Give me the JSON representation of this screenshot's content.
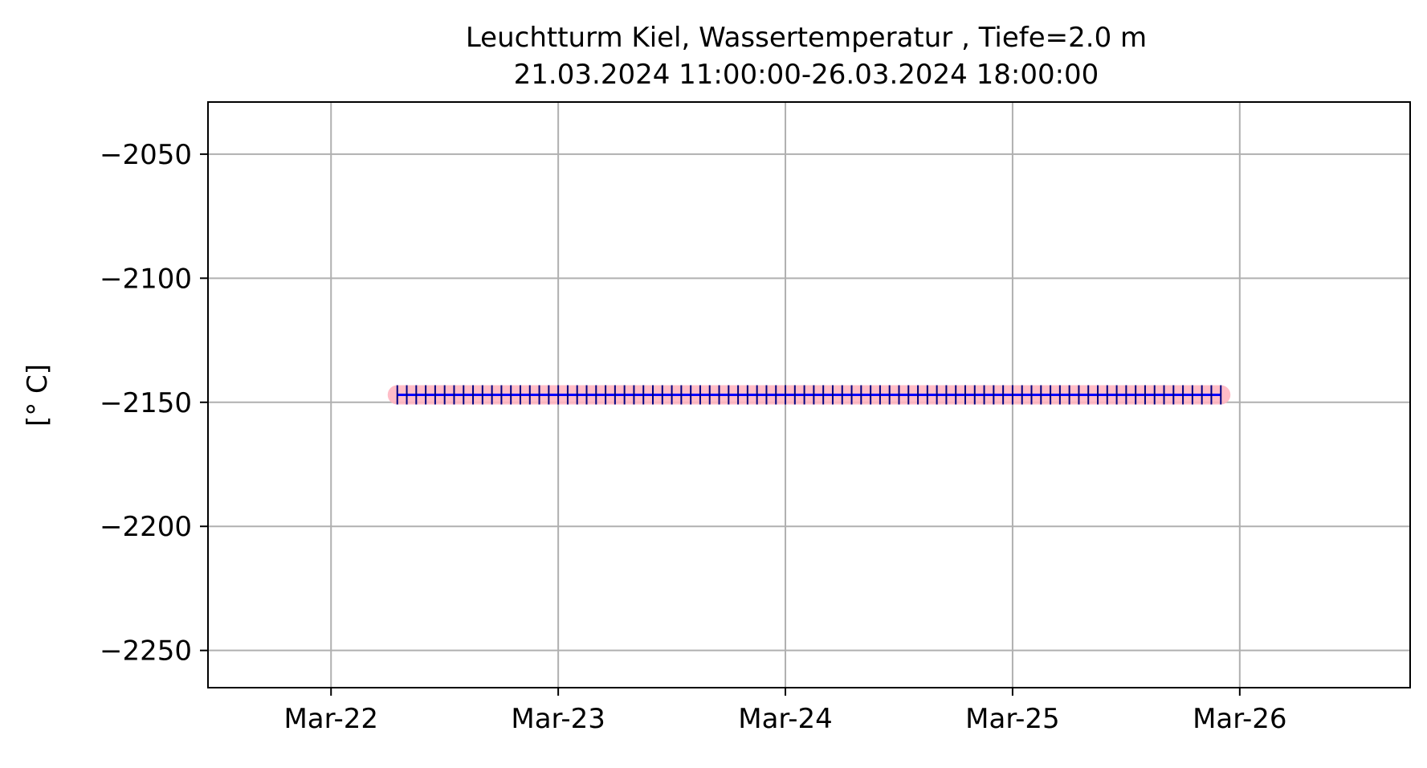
{
  "chart_data": {
    "type": "line",
    "title_line1": "Leuchtturm Kiel, Wassertemperatur , Tiefe=2.0 m",
    "title_line2": "21.03.2024 11:00:00-26.03.2024 18:00:00",
    "xlabel": "",
    "ylabel": "[° C]",
    "x_axis_type": "date",
    "xlim": [
      "2024-03-21T11:00:00",
      "2024-03-26T18:00:00"
    ],
    "x_ticks": [
      "2024-03-22",
      "2024-03-23",
      "2024-03-24",
      "2024-03-25",
      "2024-03-26"
    ],
    "x_tick_labels": [
      "Mar-22",
      "Mar-23",
      "Mar-24",
      "Mar-25",
      "Mar-26"
    ],
    "ylim": [
      -2265,
      -2029
    ],
    "y_ticks": [
      -2050,
      -2100,
      -2150,
      -2200,
      -2250
    ],
    "y_tick_labels": [
      "−2050",
      "−2100",
      "−2150",
      "−2200",
      "−2250"
    ],
    "grid": true,
    "series": [
      {
        "start": "2024-03-22T07:00:00",
        "end": "2024-03-25T22:00:00",
        "interval_hours": 1,
        "value": -2147,
        "line_color": "#0000ff",
        "marker": "+",
        "marker_color": "#000080",
        "highlight_color": "#ffb6c1"
      }
    ]
  }
}
